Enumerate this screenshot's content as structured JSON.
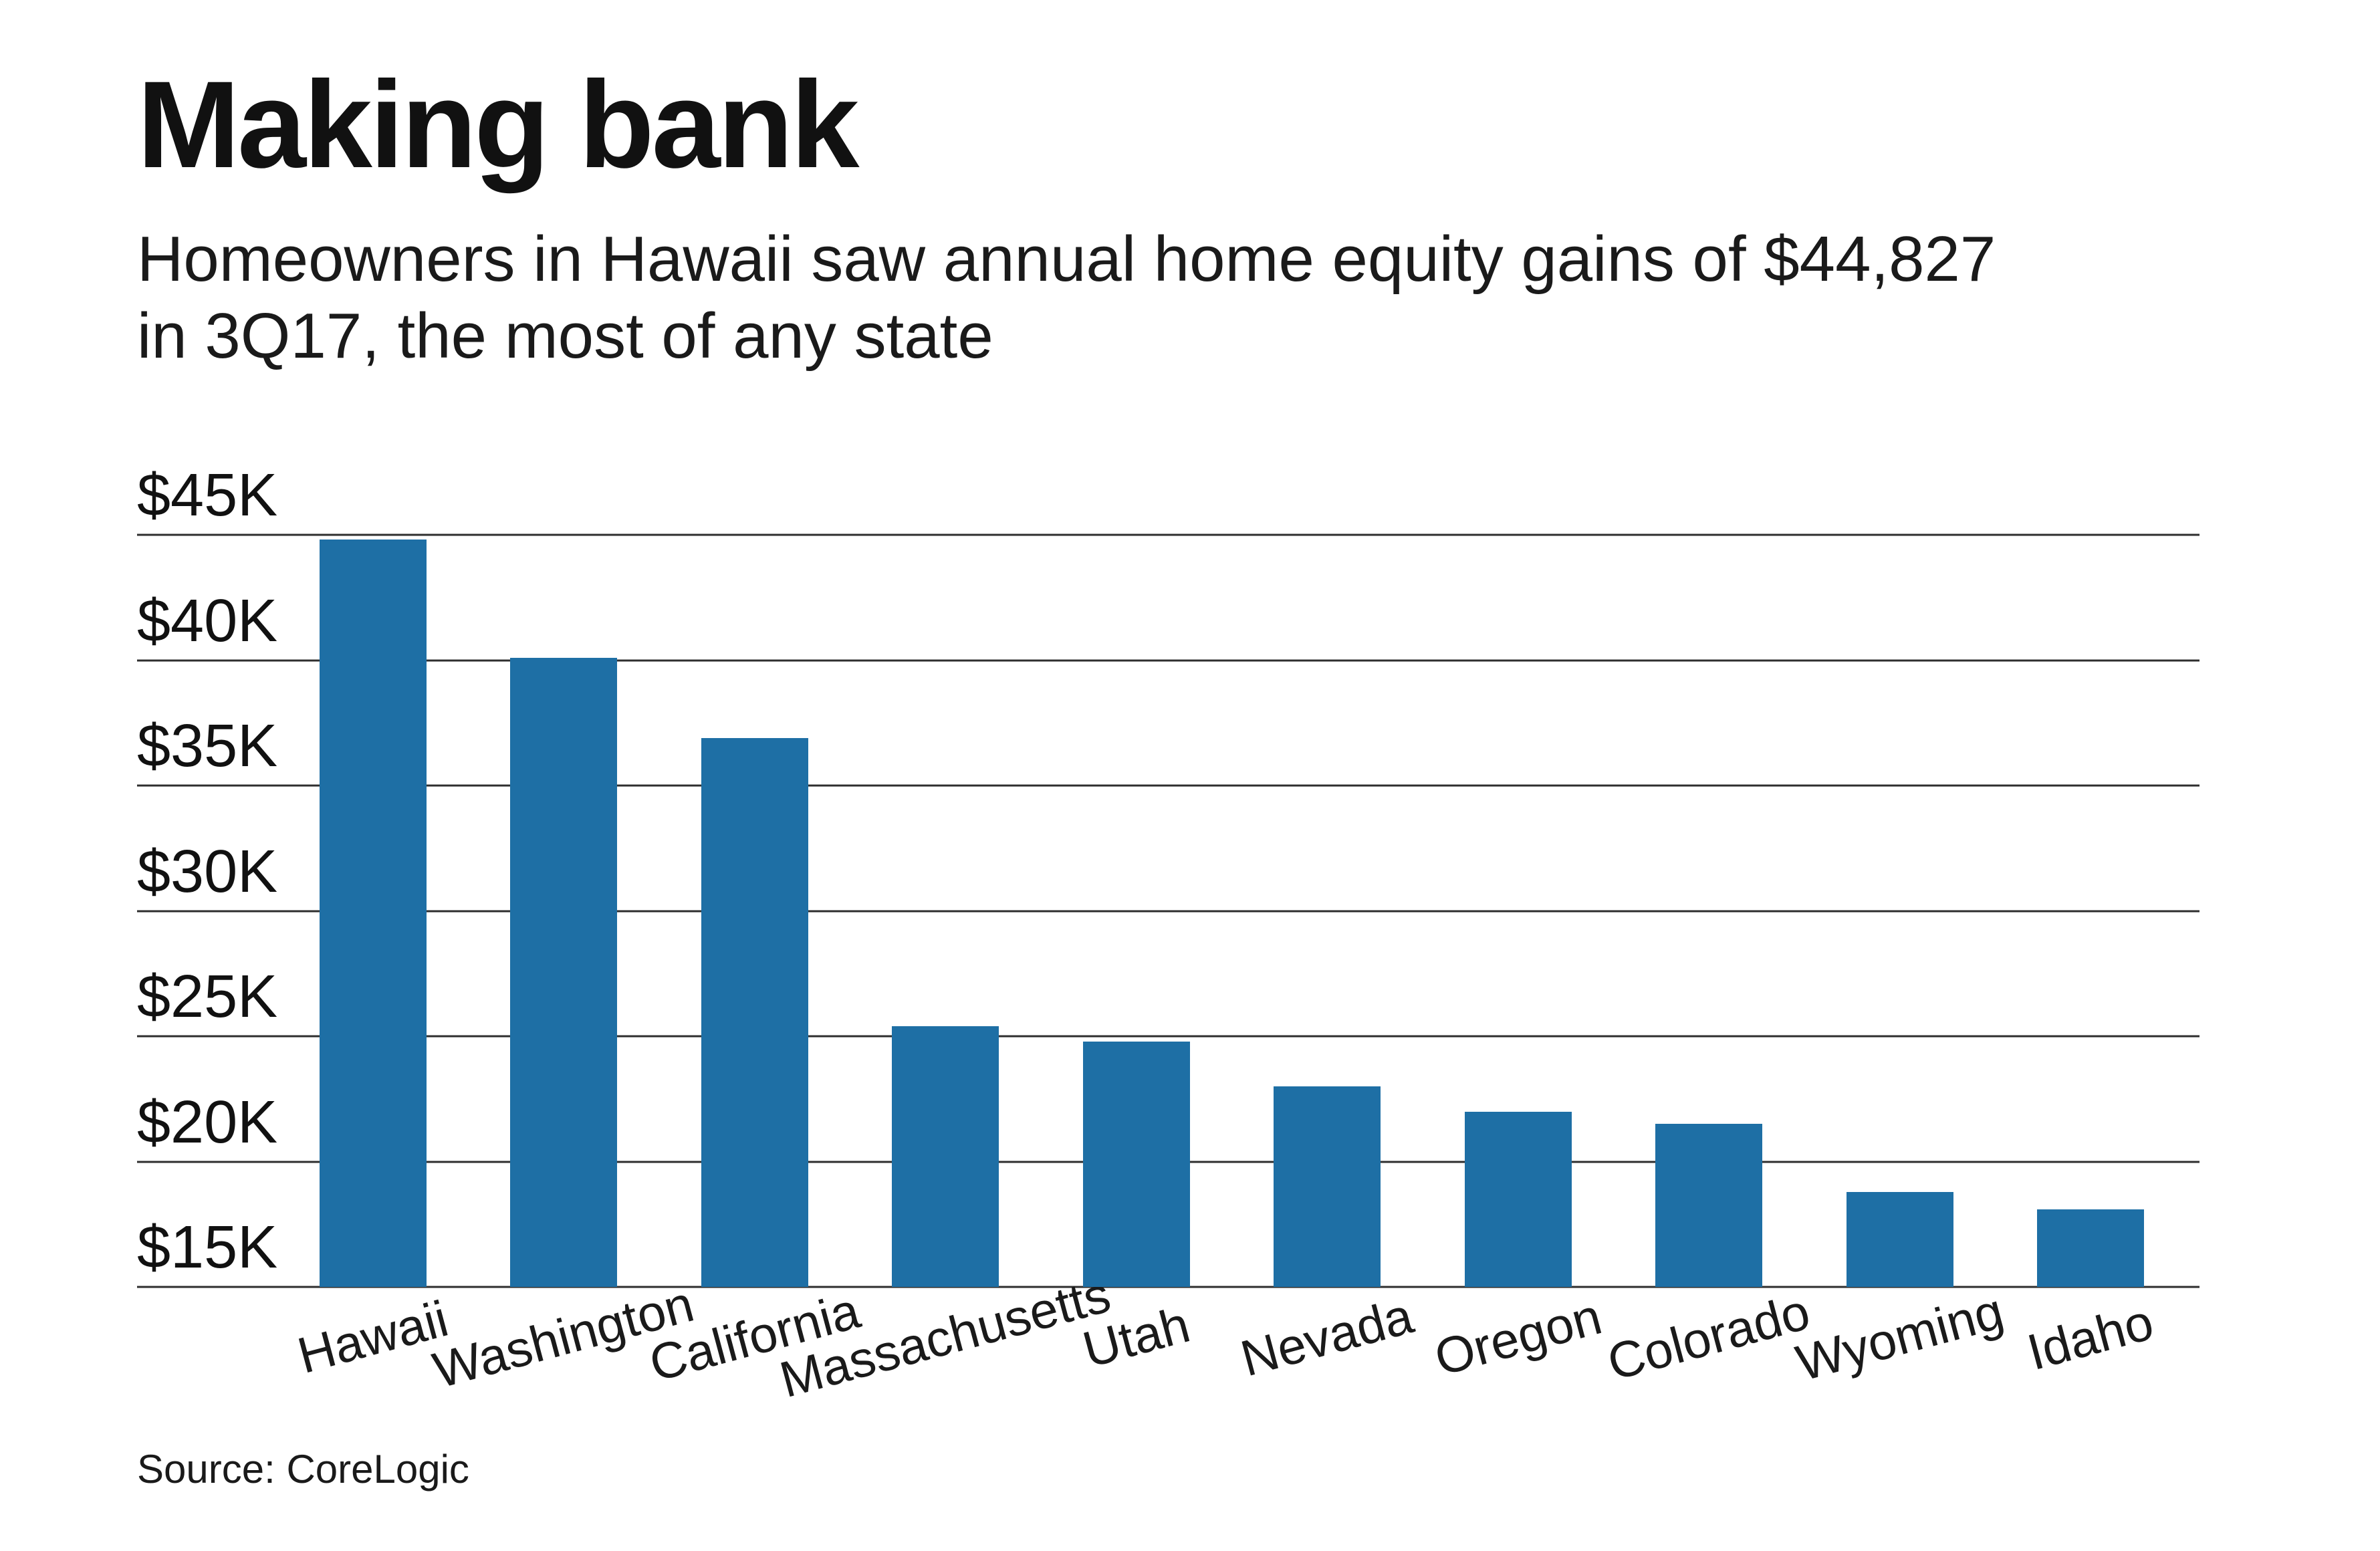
{
  "chart_data": {
    "type": "bar",
    "title": "Making bank",
    "subtitle_lines": [
      "Homeowners in Hawaii saw annual home equity gains of $44,827",
      "in 3Q17, the most of any state"
    ],
    "source": "Source: CoreLogic",
    "categories": [
      "Hawaii",
      "Washington",
      "California",
      "Massachusetts",
      "Utah",
      "Nevada",
      "Oregon",
      "Colorado",
      "Wyoming",
      "Idaho"
    ],
    "values": [
      44827,
      40100,
      36900,
      25400,
      24800,
      23000,
      22000,
      21500,
      18800,
      18100
    ],
    "xlabel": "",
    "ylabel": "",
    "ylim": [
      15000,
      47000
    ],
    "ytick_values": [
      45000,
      40000,
      35000,
      30000,
      25000,
      20000,
      15000
    ],
    "ytick_labels": [
      "$45K",
      "$40K",
      "$35K",
      "$30K",
      "$25K",
      "$20K",
      "$15K"
    ],
    "grid": true,
    "legend": false,
    "bar_color": "#1e6fa5",
    "background_color": "#ffffff",
    "text_color": "#1a1a1a"
  }
}
